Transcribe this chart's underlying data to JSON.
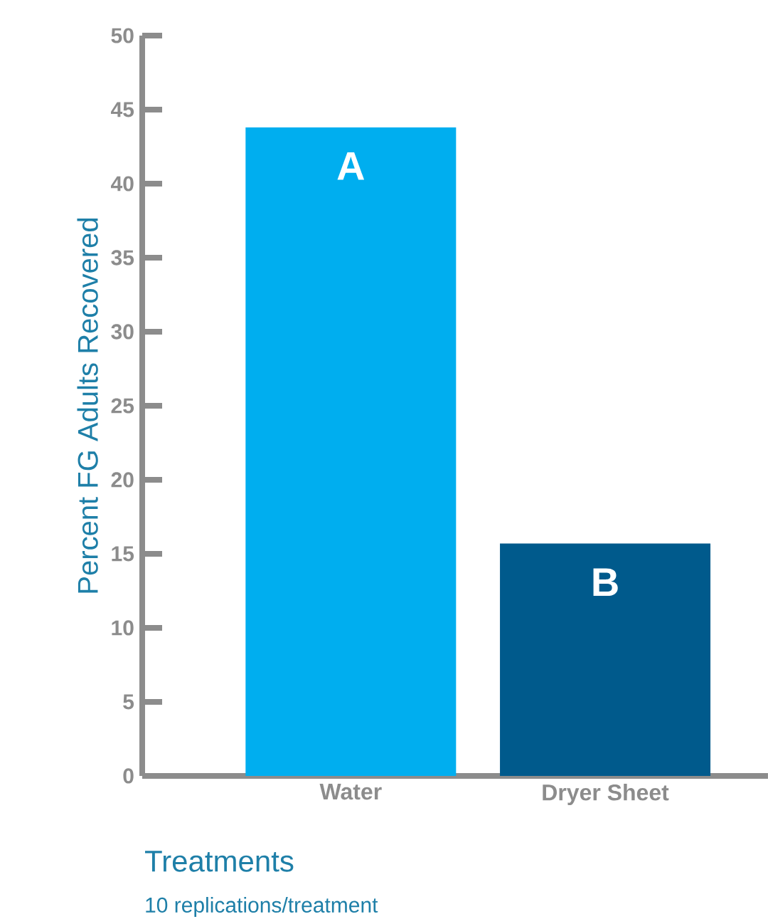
{
  "chart_data": {
    "type": "bar",
    "categories": [
      "Water",
      "Dryer Sheet"
    ],
    "values": [
      43.8,
      15.7
    ],
    "colors": [
      "#00aeef",
      "#005a8c"
    ],
    "xlabel": "Treatments",
    "ylabel": "Percent FG Adults Recovered",
    "ylim": [
      0,
      50
    ],
    "yticks": [
      0,
      5,
      10,
      15,
      20,
      25,
      30,
      35,
      40,
      45,
      50
    ],
    "annotations": [
      {
        "text": "A",
        "x": "Water",
        "y": 43.8
      },
      {
        "text": "B",
        "x": "Dryer Sheet",
        "y": 15.7
      },
      "10 replications/treatment"
    ]
  }
}
